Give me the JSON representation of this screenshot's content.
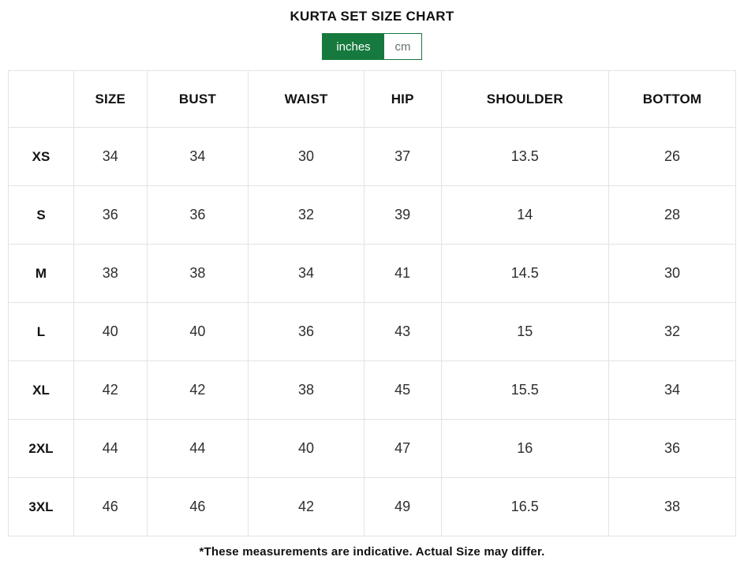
{
  "title": "KURTA SET SIZE CHART",
  "unit_toggle": {
    "options": [
      {
        "label": "inches",
        "selected": true
      },
      {
        "label": "cm",
        "selected": false
      }
    ]
  },
  "table": {
    "headers": [
      "",
      "SIZE",
      "BUST",
      "WAIST",
      "HIP",
      "SHOULDER",
      "BOTTOM"
    ],
    "rows": [
      {
        "label": "XS",
        "values": [
          "34",
          "34",
          "30",
          "37",
          "13.5",
          "26"
        ]
      },
      {
        "label": "S",
        "values": [
          "36",
          "36",
          "32",
          "39",
          "14",
          "28"
        ]
      },
      {
        "label": "M",
        "values": [
          "38",
          "38",
          "34",
          "41",
          "14.5",
          "30"
        ]
      },
      {
        "label": "L",
        "values": [
          "40",
          "40",
          "36",
          "43",
          "15",
          "32"
        ]
      },
      {
        "label": "XL",
        "values": [
          "42",
          "42",
          "38",
          "45",
          "15.5",
          "34"
        ]
      },
      {
        "label": "2XL",
        "values": [
          "44",
          "44",
          "40",
          "47",
          "16",
          "36"
        ]
      },
      {
        "label": "3XL",
        "values": [
          "46",
          "46",
          "42",
          "49",
          "16.5",
          "38"
        ]
      }
    ]
  },
  "footnote": "*These measurements are indicative. Actual Size may differ.",
  "colors": {
    "accent_green": "#16793d",
    "table_border": "#e3e3e3",
    "selected_unit_text": "#ffffff",
    "unselected_unit_text": "#66736c"
  }
}
